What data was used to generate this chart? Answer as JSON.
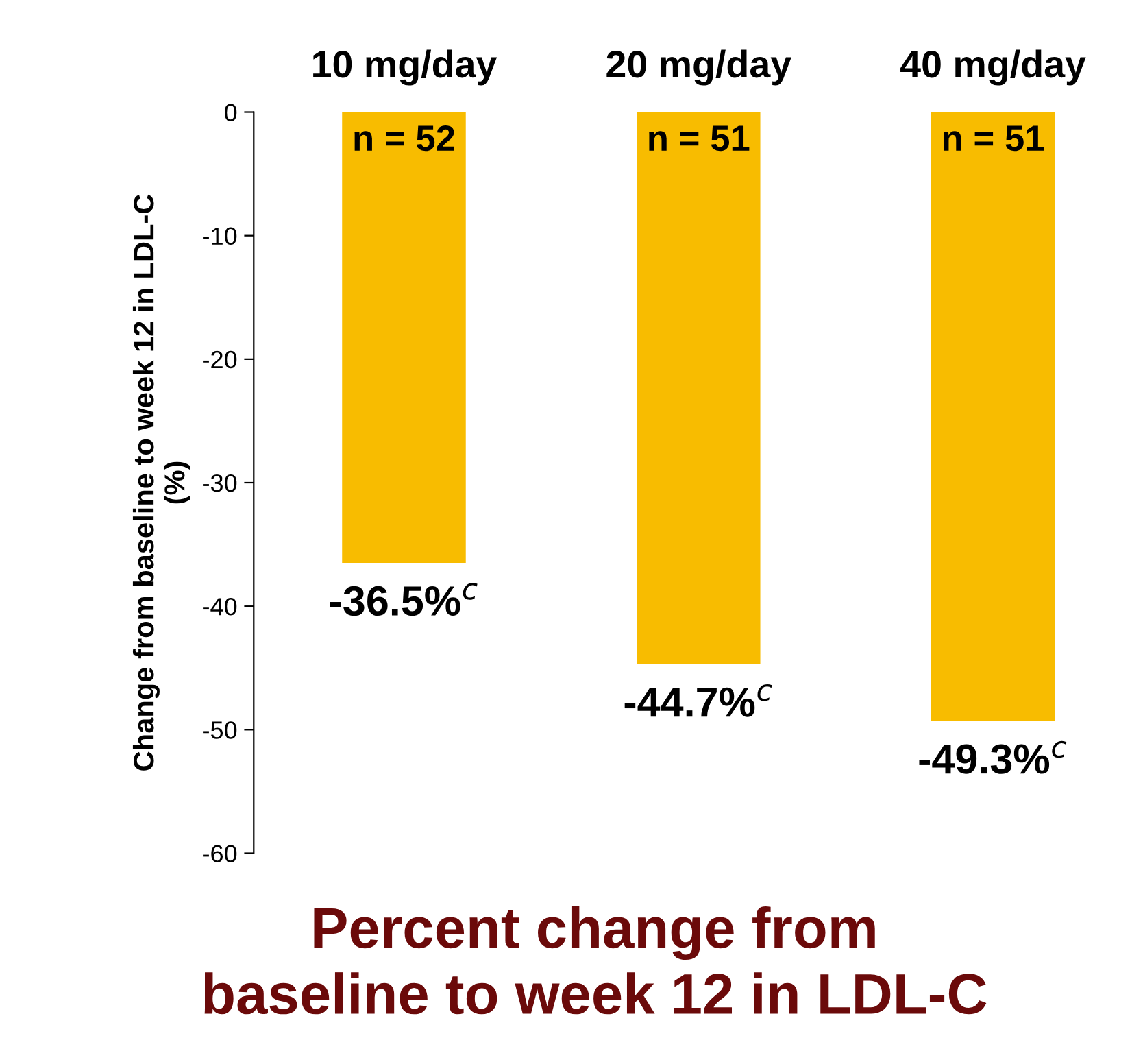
{
  "chart_data": {
    "type": "bar",
    "title": "Percent change from\nbaseline to week 12 in LDL-C",
    "ylabel": "Change from baseline to week 12 in LDL-C\n(%)",
    "categories": [
      "10 mg/day",
      "20 mg/day",
      "40 mg/day"
    ],
    "values": [
      -36.5,
      -44.7,
      -49.3
    ],
    "color": "#f8bc00",
    "value_labels": [
      "-36.5%$^{c}$",
      "-44.7%$^{c}$",
      "-49.3%$^{c}$"
    ],
    "annotations": [
      {
        "text": "n = 52",
        "x": "10 mg/day",
        "y": 0
      },
      {
        "text": "n = 51",
        "x": "20 mg/day",
        "y": 0
      },
      {
        "text": "n = 51",
        "x": "40 mg/day",
        "y": 0
      }
    ],
    "ylim": [
      -60,
      0
    ],
    "yticks": [
      0,
      -10,
      -20,
      -30,
      -40,
      -50,
      -60
    ],
    "grid": false,
    "legend": false
  }
}
